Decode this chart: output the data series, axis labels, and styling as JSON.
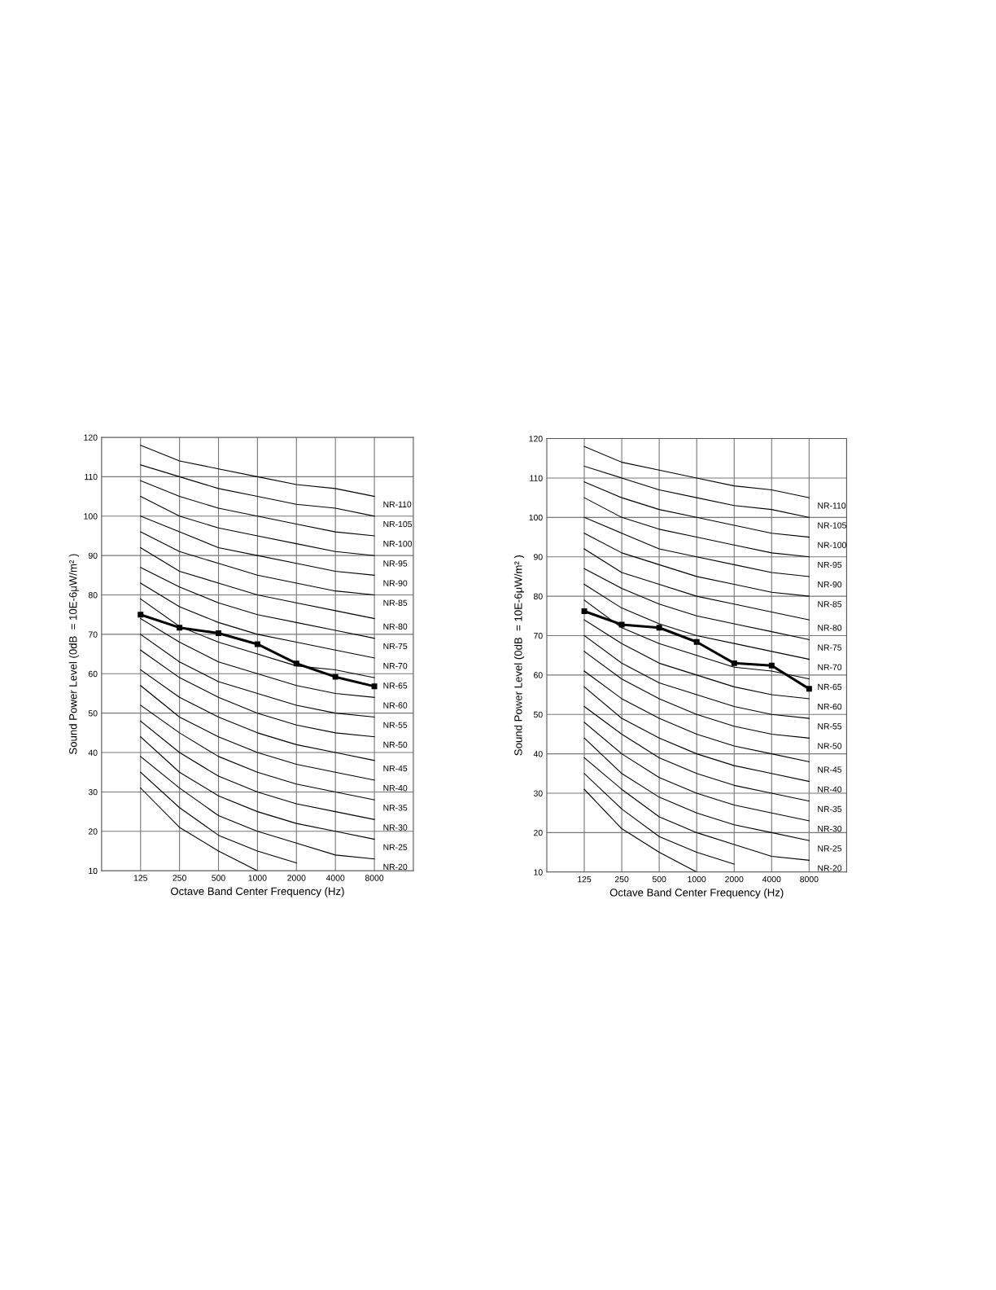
{
  "chart_data": [
    {
      "type": "line",
      "xlabel": "Octave Band Center Frequency (Hz)",
      "ylabel": "Sound Power Level (0dB  = 10E-6μW/m² )",
      "categories": [
        "125",
        "250",
        "500",
        "1000",
        "2000",
        "4000",
        "8000"
      ],
      "ylim": [
        10,
        120
      ],
      "yticks": [
        10,
        20,
        30,
        40,
        50,
        60,
        70,
        80,
        90,
        100,
        110,
        120
      ],
      "grid": true,
      "legend": false,
      "series": [
        {
          "name": "NR-110",
          "color": "#000000",
          "values": [
            118,
            114,
            112,
            110,
            108,
            107,
            105
          ]
        },
        {
          "name": "NR-105",
          "color": "#000000",
          "values": [
            113,
            110,
            107,
            105,
            103,
            102,
            100
          ]
        },
        {
          "name": "NR-100",
          "color": "#000000",
          "values": [
            109,
            105,
            102,
            100,
            98,
            96,
            95
          ]
        },
        {
          "name": "NR-95",
          "color": "#000000",
          "values": [
            105,
            100,
            97,
            95,
            93,
            91,
            90
          ]
        },
        {
          "name": "NR-90",
          "color": "#000000",
          "values": [
            100,
            96,
            92,
            90,
            88,
            86,
            85
          ]
        },
        {
          "name": "NR-85",
          "color": "#000000",
          "values": [
            96,
            91,
            88,
            85,
            83,
            81,
            80
          ]
        },
        {
          "name": "NR-80",
          "color": "#000000",
          "values": [
            92,
            86,
            83,
            80,
            78,
            76,
            74
          ]
        },
        {
          "name": "NR-75",
          "color": "#000000",
          "values": [
            87,
            82,
            78,
            75,
            73,
            71,
            69
          ]
        },
        {
          "name": "NR-70",
          "color": "#000000",
          "values": [
            83,
            77,
            73,
            70,
            68,
            66,
            64
          ]
        },
        {
          "name": "NR-65",
          "color": "#000000",
          "values": [
            79,
            72,
            68,
            65,
            62,
            61,
            59
          ]
        },
        {
          "name": "NR-60",
          "color": "#000000",
          "values": [
            74,
            68,
            63,
            60,
            57,
            55,
            54
          ]
        },
        {
          "name": "NR-55",
          "color": "#000000",
          "values": [
            70,
            63,
            58,
            55,
            52,
            50,
            49
          ]
        },
        {
          "name": "NR-50",
          "color": "#000000",
          "values": [
            66,
            59,
            54,
            50,
            47,
            45,
            44
          ]
        },
        {
          "name": "NR-45",
          "color": "#000000",
          "values": [
            61,
            54,
            49,
            45,
            42,
            40,
            38
          ]
        },
        {
          "name": "NR-40",
          "color": "#000000",
          "values": [
            57,
            49,
            44,
            40,
            37,
            35,
            33
          ]
        },
        {
          "name": "NR-35",
          "color": "#000000",
          "values": [
            52,
            45,
            39,
            35,
            32,
            30,
            28
          ]
        },
        {
          "name": "NR-30",
          "color": "#000000",
          "values": [
            48,
            40,
            34,
            30,
            27,
            25,
            23
          ]
        },
        {
          "name": "NR-25",
          "color": "#000000",
          "values": [
            44,
            35,
            29,
            25,
            22,
            20,
            18
          ]
        },
        {
          "name": "NR-20",
          "color": "#000000",
          "values": [
            39,
            31,
            24,
            20,
            17,
            14,
            13
          ]
        },
        {
          "color": "#000000",
          "values": [
            35,
            26,
            19,
            15,
            12,
            null,
            null
          ]
        },
        {
          "color": "#000000",
          "values": [
            31,
            21,
            15,
            10,
            null,
            null,
            null
          ]
        },
        {
          "color": "#000000",
          "marker": "square",
          "values": [
            75.0,
            71.7,
            70.3,
            67.5,
            62.6,
            59.2,
            56.8
          ]
        }
      ]
    },
    {
      "type": "line",
      "xlabel": "Octave Band Center Frequency (Hz)",
      "ylabel": "Sound Power Level (0dB  = 10E-6μW/m² )",
      "categories": [
        "125",
        "250",
        "500",
        "1000",
        "2000",
        "4000",
        "8000"
      ],
      "ylim": [
        10,
        120
      ],
      "yticks": [
        10,
        20,
        30,
        40,
        50,
        60,
        70,
        80,
        90,
        100,
        110,
        120
      ],
      "grid": true,
      "legend": false,
      "series": [
        {
          "name": "NR-110",
          "color": "#000000",
          "values": [
            118,
            114,
            112,
            110,
            108,
            107,
            105
          ]
        },
        {
          "name": "NR-105",
          "color": "#000000",
          "values": [
            113,
            110,
            107,
            105,
            103,
            102,
            100
          ]
        },
        {
          "name": "NR-100",
          "color": "#000000",
          "values": [
            109,
            105,
            102,
            100,
            98,
            96,
            95
          ]
        },
        {
          "name": "NR-95",
          "color": "#000000",
          "values": [
            105,
            100,
            97,
            95,
            93,
            91,
            90
          ]
        },
        {
          "name": "NR-90",
          "color": "#000000",
          "values": [
            100,
            96,
            92,
            90,
            88,
            86,
            85
          ]
        },
        {
          "name": "NR-85",
          "color": "#000000",
          "values": [
            96,
            91,
            88,
            85,
            83,
            81,
            80
          ]
        },
        {
          "name": "NR-80",
          "color": "#000000",
          "values": [
            92,
            86,
            83,
            80,
            78,
            76,
            74
          ]
        },
        {
          "name": "NR-75",
          "color": "#000000",
          "values": [
            87,
            82,
            78,
            75,
            73,
            71,
            69
          ]
        },
        {
          "name": "NR-70",
          "color": "#000000",
          "values": [
            83,
            77,
            73,
            70,
            68,
            66,
            64
          ]
        },
        {
          "name": "NR-65",
          "color": "#000000",
          "values": [
            79,
            72,
            68,
            65,
            62,
            61,
            59
          ]
        },
        {
          "name": "NR-60",
          "color": "#000000",
          "values": [
            74,
            68,
            63,
            60,
            57,
            55,
            54
          ]
        },
        {
          "name": "NR-55",
          "color": "#000000",
          "values": [
            70,
            63,
            58,
            55,
            52,
            50,
            49
          ]
        },
        {
          "name": "NR-50",
          "color": "#000000",
          "values": [
            66,
            59,
            54,
            50,
            47,
            45,
            44
          ]
        },
        {
          "name": "NR-45",
          "color": "#000000",
          "values": [
            61,
            54,
            49,
            45,
            42,
            40,
            38
          ]
        },
        {
          "name": "NR-40",
          "color": "#000000",
          "values": [
            57,
            49,
            44,
            40,
            37,
            35,
            33
          ]
        },
        {
          "name": "NR-35",
          "color": "#000000",
          "values": [
            52,
            45,
            39,
            35,
            32,
            30,
            28
          ]
        },
        {
          "name": "NR-30",
          "color": "#000000",
          "values": [
            48,
            40,
            34,
            30,
            27,
            25,
            23
          ]
        },
        {
          "name": "NR-25",
          "color": "#000000",
          "values": [
            44,
            35,
            29,
            25,
            22,
            20,
            18
          ]
        },
        {
          "name": "NR-20",
          "color": "#000000",
          "values": [
            39,
            31,
            24,
            20,
            17,
            14,
            13
          ]
        },
        {
          "color": "#000000",
          "values": [
            35,
            26,
            19,
            15,
            12,
            null,
            null
          ]
        },
        {
          "color": "#000000",
          "values": [
            31,
            21,
            15,
            10,
            null,
            null,
            null
          ]
        },
        {
          "color": "#000000",
          "marker": "square",
          "values": [
            76.2,
            72.8,
            72.0,
            68.4,
            63.0,
            62.4,
            56.5
          ]
        }
      ]
    }
  ]
}
